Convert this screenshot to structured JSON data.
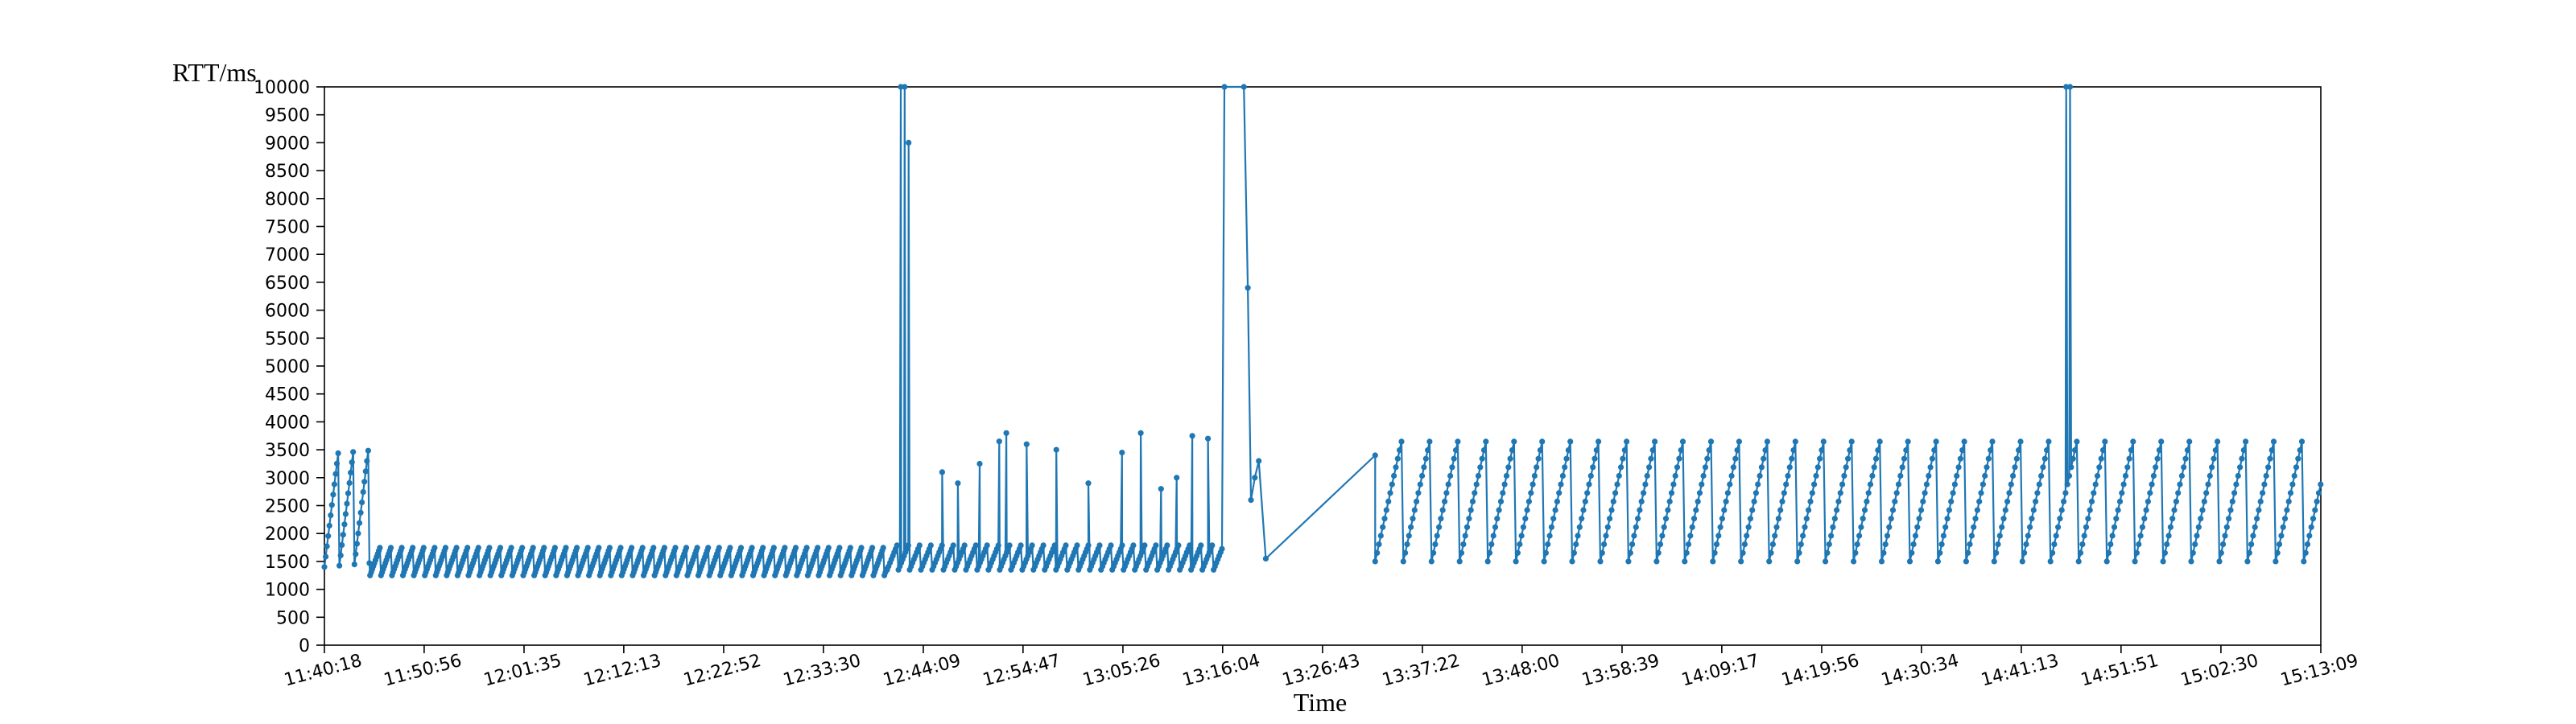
{
  "chart_data": {
    "type": "line",
    "ylabel": "RTT/ms",
    "xlabel": "Time",
    "ylim": [
      0,
      10000
    ],
    "y_ticks": [
      0,
      500,
      1000,
      1500,
      2000,
      2500,
      3000,
      3500,
      4000,
      4500,
      5000,
      5500,
      6000,
      6500,
      7000,
      7500,
      8000,
      8500,
      9000,
      9500,
      10000
    ],
    "x_range": [
      "11:40:18",
      "15:13:09"
    ],
    "x_ticks": [
      "11:40:18",
      "11:50:56",
      "12:01:35",
      "12:12:13",
      "12:22:52",
      "12:33:30",
      "12:44:09",
      "12:54:47",
      "13:05:26",
      "13:16:04",
      "13:26:43",
      "13:37:22",
      "13:48:00",
      "13:58:39",
      "14:09:17",
      "14:19:56",
      "14:30:34",
      "14:41:13",
      "14:51:51",
      "15:02:30",
      "15:13:09"
    ],
    "series_color": "#1f77b4",
    "grid": false,
    "series": [
      {
        "segments": [
          {
            "pattern": "sawtooth",
            "start": "11:40:18",
            "end": "11:45:10",
            "low": 1400,
            "high": 3600,
            "period_seconds": 95,
            "step_seconds": 8
          },
          {
            "pattern": "sawtooth",
            "start": "11:45:10",
            "end": "12:40:18",
            "low": 1250,
            "high": 1800,
            "period_seconds": 70,
            "step_seconds": 7
          },
          {
            "pattern": "sawtooth",
            "start": "12:40:18",
            "end": "13:16:00",
            "low": 1350,
            "high": 1850,
            "period_seconds": 72,
            "step_seconds": 9,
            "spikes": [
              {
                "time": "12:41:45",
                "value": 10000
              },
              {
                "time": "12:42:10",
                "value": 10000
              },
              {
                "time": "12:42:35",
                "value": 9000
              },
              {
                "time": "12:46:10",
                "value": 3100
              },
              {
                "time": "12:47:50",
                "value": 2900
              },
              {
                "time": "12:50:10",
                "value": 3250
              },
              {
                "time": "12:52:15",
                "value": 3650
              },
              {
                "time": "12:53:00",
                "value": 3800
              },
              {
                "time": "12:55:10",
                "value": 3600
              },
              {
                "time": "12:58:20",
                "value": 3500
              },
              {
                "time": "13:01:45",
                "value": 2900
              },
              {
                "time": "13:05:20",
                "value": 3450
              },
              {
                "time": "13:07:20",
                "value": 3800
              },
              {
                "time": "13:09:30",
                "value": 2800
              },
              {
                "time": "13:11:10",
                "value": 3000
              },
              {
                "time": "13:12:50",
                "value": 3750
              },
              {
                "time": "13:14:30",
                "value": 3700
              }
            ]
          },
          {
            "pattern": "points",
            "values": [
              {
                "time": "13:16:15",
                "value": 10000
              },
              {
                "time": "13:18:20",
                "value": 10000
              },
              {
                "time": "13:18:45",
                "value": 6400
              },
              {
                "time": "13:19:05",
                "value": 2600
              },
              {
                "time": "13:19:30",
                "value": 3000
              },
              {
                "time": "13:19:55",
                "value": 3300
              },
              {
                "time": "13:20:40",
                "value": 1550
              },
              {
                "time": "13:32:20",
                "value": 3400
              }
            ]
          },
          {
            "pattern": "sawtooth",
            "start": "13:32:20",
            "end": "15:13:09",
            "low": 1500,
            "high": 3800,
            "period_seconds": 180,
            "step_seconds": 12,
            "spikes": [
              {
                "time": "14:46:00",
                "value": 10000
              },
              {
                "time": "14:46:25",
                "value": 10000
              }
            ]
          }
        ]
      }
    ]
  }
}
